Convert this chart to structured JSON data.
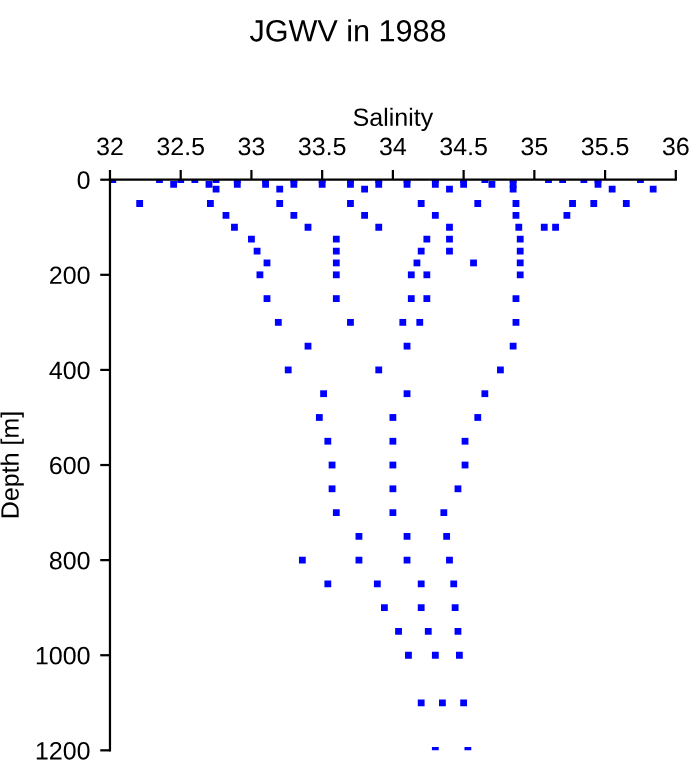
{
  "chart_data": {
    "type": "scatter",
    "title": "JGWV in 1988",
    "xlabel": "Salinity",
    "ylabel": "Depth [m]",
    "xlim": [
      32,
      36
    ],
    "xticks": [
      32,
      32.5,
      33,
      33.5,
      34,
      34.5,
      35,
      35.5,
      36
    ],
    "ylim": [
      1200,
      0
    ],
    "yticks": [
      0,
      200,
      400,
      600,
      800,
      1000,
      1200
    ],
    "grid": false,
    "legend": false,
    "marker": "square",
    "series": [
      {
        "color": "#0000ff",
        "x": [
          32.02,
          32.35,
          32.5,
          32.6,
          32.75,
          32.9,
          33.1,
          33.3,
          33.5,
          33.7,
          33.9,
          34.1,
          34.3,
          34.5,
          34.65,
          34.85,
          35.1,
          35.2,
          35.35,
          35.45,
          35.75,
          32.45,
          32.7,
          32.9,
          33.1,
          33.3,
          33.5,
          33.7,
          33.9,
          34.1,
          34.3,
          34.5,
          34.7,
          34.85,
          35.45,
          32.75,
          33.2,
          33.8,
          34.4,
          34.85,
          35.55,
          35.84,
          32.21,
          32.71,
          33.2,
          33.7,
          34.2,
          34.6,
          34.87,
          35.27,
          35.42,
          35.65,
          32.82,
          33.3,
          33.8,
          34.3,
          34.87,
          35.23,
          32.88,
          33.4,
          33.9,
          34.4,
          34.89,
          35.07,
          35.15,
          33.0,
          33.6,
          34.24,
          34.4,
          34.9,
          33.04,
          33.6,
          34.2,
          34.4,
          34.9,
          33.11,
          33.6,
          34.17,
          34.57,
          34.9,
          33.06,
          33.6,
          34.13,
          34.24,
          34.9,
          33.11,
          33.6,
          34.13,
          34.24,
          34.87,
          33.19,
          33.7,
          34.07,
          34.19,
          34.87,
          33.4,
          34.1,
          34.85,
          33.26,
          33.9,
          34.76,
          33.51,
          34.1,
          34.65,
          33.48,
          34.0,
          34.6,
          33.54,
          34.0,
          34.51,
          33.57,
          34.0,
          34.51,
          33.57,
          34.0,
          34.46,
          33.6,
          34.0,
          34.36,
          33.76,
          34.1,
          34.38,
          33.36,
          33.76,
          34.1,
          34.4,
          33.54,
          33.89,
          34.2,
          34.43,
          33.94,
          34.2,
          34.44,
          34.04,
          34.25,
          34.46,
          34.11,
          34.3,
          34.47,
          34.2,
          34.35,
          34.5,
          34.3,
          34.53
        ],
        "values": [
          0,
          0,
          0,
          0,
          0,
          0,
          0,
          0,
          0,
          0,
          0,
          0,
          0,
          0,
          0,
          0,
          0,
          0,
          0,
          0,
          0,
          10,
          10,
          10,
          10,
          10,
          10,
          10,
          10,
          10,
          10,
          10,
          10,
          10,
          10,
          20,
          20,
          20,
          20,
          20,
          20,
          20,
          50,
          50,
          50,
          50,
          50,
          50,
          50,
          50,
          50,
          50,
          75,
          75,
          75,
          75,
          75,
          75,
          100,
          100,
          100,
          100,
          100,
          100,
          100,
          125,
          125,
          125,
          125,
          125,
          150,
          150,
          150,
          150,
          150,
          175,
          175,
          175,
          175,
          175,
          200,
          200,
          200,
          200,
          200,
          250,
          250,
          250,
          250,
          250,
          300,
          300,
          300,
          300,
          300,
          350,
          350,
          350,
          400,
          400,
          400,
          450,
          450,
          450,
          500,
          500,
          500,
          550,
          550,
          550,
          600,
          600,
          600,
          650,
          650,
          650,
          700,
          700,
          700,
          750,
          750,
          750,
          800,
          800,
          800,
          800,
          850,
          850,
          850,
          850,
          900,
          900,
          900,
          950,
          950,
          950,
          1000,
          1000,
          1000,
          1100,
          1100,
          1100,
          1200,
          1200
        ]
      }
    ]
  }
}
